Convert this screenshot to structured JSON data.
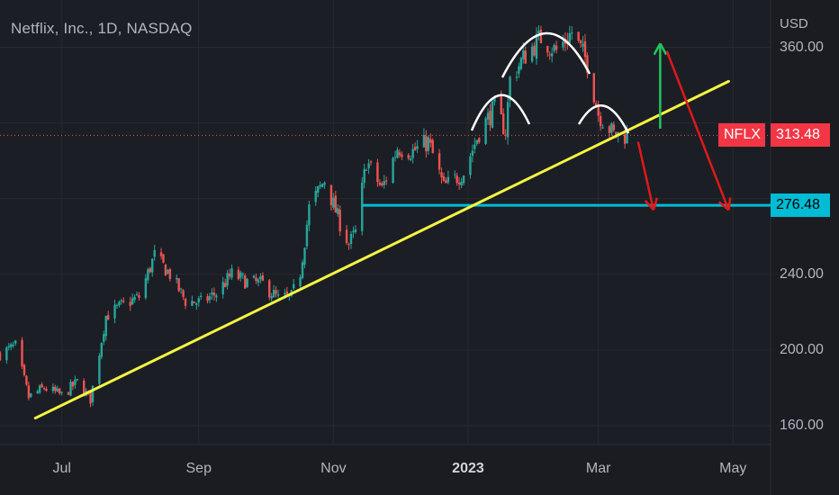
{
  "title": "Netflix, Inc., 1D, NASDAQ",
  "currency": "USD",
  "ticker_badge": {
    "label": "NFLX",
    "value": "313.48",
    "color": "#f23645"
  },
  "support_badge": {
    "value": "276.48",
    "color": "#00bcd4"
  },
  "colors": {
    "background": "#1a1c22",
    "up": "#26a69a",
    "down": "#ef5350",
    "trendline": "#f5f542",
    "support": "#00bcd4",
    "arrow_up": "#22c55e",
    "arrow_down": "#e01919",
    "pattern": "#ffffff"
  },
  "chart_data": {
    "type": "candlestick",
    "title": "Netflix, Inc., 1D, NASDAQ",
    "ylabel": "USD",
    "ylim": [
      150,
      385
    ],
    "x_range": [
      "2022-06-03",
      "2023-05-18"
    ],
    "y_ticks": [
      160,
      200,
      240,
      280,
      320,
      360
    ],
    "y_tick_labels": [
      "160.00",
      "200.00",
      "240.00",
      "",
      "",
      "360.00"
    ],
    "x_ticks": [
      {
        "date": "2022-07-01",
        "label": "Jul",
        "bold": false
      },
      {
        "date": "2022-09-01",
        "label": "Sep",
        "bold": false
      },
      {
        "date": "2022-11-01",
        "label": "Nov",
        "bold": false
      },
      {
        "date": "2023-01-01",
        "label": "2023",
        "bold": true
      },
      {
        "date": "2023-03-01",
        "label": "Mar",
        "bold": false
      },
      {
        "date": "2023-05-01",
        "label": "May",
        "bold": false
      }
    ],
    "price_path": [
      [
        "2022-06-03",
        198
      ],
      [
        "2022-06-10",
        202
      ],
      [
        "2022-06-16",
        175
      ],
      [
        "2022-06-23",
        180
      ],
      [
        "2022-07-01",
        176
      ],
      [
        "2022-07-08",
        183
      ],
      [
        "2022-07-14",
        174
      ],
      [
        "2022-07-21",
        218
      ],
      [
        "2022-07-29",
        224
      ],
      [
        "2022-08-05",
        228
      ],
      [
        "2022-08-12",
        250
      ],
      [
        "2022-08-19",
        240
      ],
      [
        "2022-08-26",
        226
      ],
      [
        "2022-09-02",
        225
      ],
      [
        "2022-09-09",
        230
      ],
      [
        "2022-09-16",
        240
      ],
      [
        "2022-09-23",
        236
      ],
      [
        "2022-09-30",
        235
      ],
      [
        "2022-10-07",
        227
      ],
      [
        "2022-10-13",
        228
      ],
      [
        "2022-10-17",
        241
      ],
      [
        "2022-10-21",
        275
      ],
      [
        "2022-10-28",
        290
      ],
      [
        "2022-11-04",
        267
      ],
      [
        "2022-11-08",
        256
      ],
      [
        "2022-11-11",
        262
      ],
      [
        "2022-11-16",
        300
      ],
      [
        "2022-11-23",
        285
      ],
      [
        "2022-11-30",
        307
      ],
      [
        "2022-12-07",
        305
      ],
      [
        "2022-12-14",
        310
      ],
      [
        "2022-12-21",
        286
      ],
      [
        "2022-12-30",
        294
      ],
      [
        "2023-01-06",
        315
      ],
      [
        "2023-01-13",
        328
      ],
      [
        "2023-01-18",
        316
      ],
      [
        "2023-01-20",
        343
      ],
      [
        "2023-01-27",
        356
      ],
      [
        "2023-02-03",
        365
      ],
      [
        "2023-02-10",
        358
      ],
      [
        "2023-02-17",
        368
      ],
      [
        "2023-02-24",
        352
      ],
      [
        "2023-03-01",
        325
      ],
      [
        "2023-03-08",
        314
      ],
      [
        "2023-03-14",
        313.48
      ]
    ],
    "annotations": {
      "trendline": [
        [
          "2022-06-19",
          164
        ],
        [
          "2023-04-29",
          342
        ]
      ],
      "support_level": {
        "value": 276.48,
        "from": "2022-11-14"
      },
      "current_price": 313.48,
      "pattern": "head and shoulders",
      "arrows_down": [
        [
          [
            "2023-03-19",
            310
          ],
          [
            "2023-03-26",
            274
          ]
        ],
        [
          [
            "2023-04-01",
            358
          ],
          [
            "2023-04-29",
            274
          ]
        ]
      ],
      "arrow_up": [
        [
          "2023-03-29",
          317
        ],
        [
          "2023-03-29",
          362
        ]
      ]
    }
  }
}
